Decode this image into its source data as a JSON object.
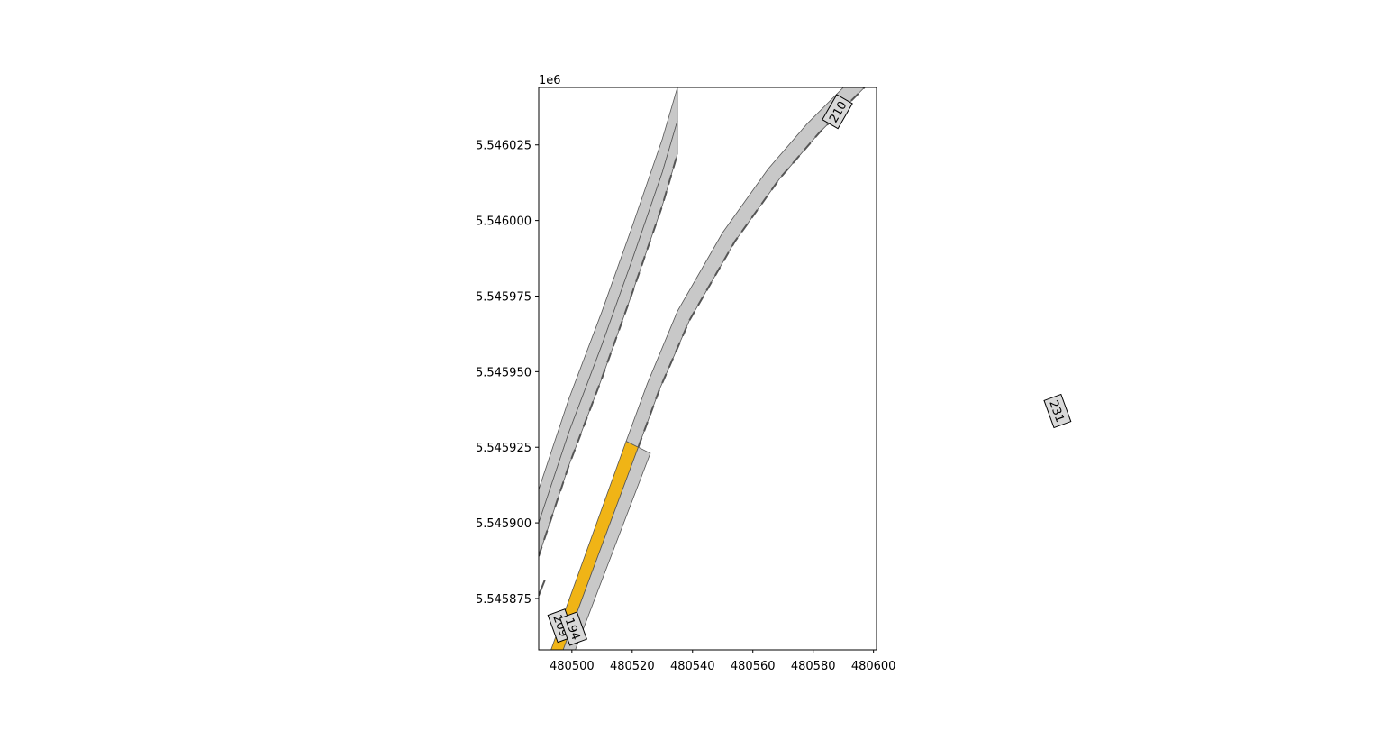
{
  "chart_data": {
    "type": "map-plot",
    "title": "",
    "xlabel": "",
    "ylabel": "",
    "y_offset_label": "1e6",
    "xlim": [
      480489,
      480601
    ],
    "ylim": [
      5545858,
      5546044
    ],
    "x_ticks": [
      {
        "value": 480500,
        "label": "480500"
      },
      {
        "value": 480520,
        "label": "480520"
      },
      {
        "value": 480540,
        "label": "480540"
      },
      {
        "value": 480560,
        "label": "480560"
      },
      {
        "value": 480580,
        "label": "480580"
      },
      {
        "value": 480600,
        "label": "480600"
      }
    ],
    "y_ticks": [
      {
        "value": 5545875,
        "label": "5.545875"
      },
      {
        "value": 5545900,
        "label": "5.545900"
      },
      {
        "value": 5545925,
        "label": "5.545925"
      },
      {
        "value": 5545950,
        "label": "5.545950"
      },
      {
        "value": 5545975,
        "label": "5.545975"
      },
      {
        "value": 5546000,
        "label": "5.546000"
      },
      {
        "value": 5546025,
        "label": "5.546025"
      }
    ],
    "colors": {
      "lane_fill": "#c8c8c8",
      "lane_edge": "#555555",
      "highlight_lane": "#f0b416",
      "lane_marking": "#555555",
      "label_box": "#d9d9d9"
    },
    "lanes": [
      {
        "id": "left-road-lane-west",
        "highlight": false,
        "left_boundary": [
          [
            480489,
            5545911
          ],
          [
            480499,
            5545941
          ],
          [
            480510,
            5545970
          ],
          [
            480520,
            5545998
          ],
          [
            480530,
            5546027
          ],
          [
            480535,
            5546044
          ]
        ],
        "right_boundary": [
          [
            480489,
            5545900
          ],
          [
            480499,
            5545930
          ],
          [
            480510,
            5545959
          ],
          [
            480520,
            5545987
          ],
          [
            480530,
            5546016
          ],
          [
            480535,
            5546033
          ]
        ]
      },
      {
        "id": "left-road-lane-east",
        "highlight": false,
        "left_boundary": [
          [
            480489,
            5545900
          ],
          [
            480499,
            5545930
          ],
          [
            480510,
            5545959
          ],
          [
            480520,
            5545987
          ],
          [
            480530,
            5546016
          ],
          [
            480535,
            5546033
          ]
        ],
        "right_boundary": [
          [
            480489,
            5545889
          ],
          [
            480499,
            5545919
          ],
          [
            480510,
            5545948
          ],
          [
            480520,
            5545976
          ],
          [
            480530,
            5546005
          ],
          [
            480535,
            5546022
          ]
        ],
        "marking_dashed": true
      },
      {
        "id": "lane-209",
        "highlight": true,
        "left_boundary": [
          [
            480492,
            5545855
          ],
          [
            480518,
            5545927
          ]
        ],
        "right_boundary": [
          [
            480496,
            5545855
          ],
          [
            480522,
            5545925
          ]
        ]
      },
      {
        "id": "lane-194",
        "highlight": false,
        "left_boundary": [
          [
            480496,
            5545855
          ],
          [
            480522,
            5545925
          ]
        ],
        "right_boundary": [
          [
            480500,
            5545855
          ],
          [
            480526,
            5545923
          ]
        ]
      },
      {
        "id": "lane-210",
        "highlight": false,
        "left_boundary": [
          [
            480518,
            5545927
          ],
          [
            480525,
            5545946
          ],
          [
            480535,
            5545970
          ],
          [
            480550,
            5545996
          ],
          [
            480565,
            5546017
          ],
          [
            480578,
            5546032
          ],
          [
            480590,
            5546044
          ]
        ],
        "right_boundary": [
          [
            480522,
            5545925
          ],
          [
            480529,
            5545944
          ],
          [
            480539,
            5545967
          ],
          [
            480554,
            5545993
          ],
          [
            480569,
            5546014
          ],
          [
            480582,
            5546029
          ],
          [
            480594,
            5546041
          ],
          [
            480597,
            5546044
          ]
        ],
        "marking_dashed": true
      }
    ],
    "stub_markings": [
      [
        [
          480489,
          5545876
        ],
        [
          480491,
          5545881
        ]
      ]
    ],
    "road_labels": [
      {
        "text": "209",
        "x": 480496.5,
        "y": 5545866,
        "angle": 70
      },
      {
        "text": "194",
        "x": 480500.5,
        "y": 5545865,
        "angle": 70
      },
      {
        "text": "210",
        "x": 480588,
        "y": 5546036,
        "angle": -60
      },
      {
        "text": "231",
        "x": 480661,
        "y": 5545937,
        "angle": 70
      }
    ]
  }
}
